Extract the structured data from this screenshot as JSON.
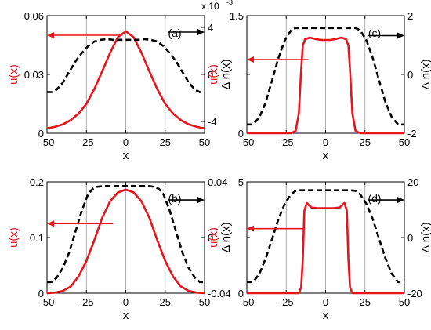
{
  "colors": {
    "u_axis": "#e8141c",
    "u_curve": "#e8141c",
    "n_curve": "#000000",
    "axis": "#000000",
    "gridline": "#9a9a9a"
  },
  "chart_data": [
    {
      "panel_label": "(a)",
      "type": "line",
      "xlabel": "x",
      "ylabel_left": "u(x)",
      "ylabel_right": "Δ n(x)",
      "right_axis_multiplier": "x 10",
      "right_axis_exponent": "-3",
      "xlim": [
        -50,
        50
      ],
      "x_ticks": [
        "-50",
        "-25",
        "0",
        "25",
        "50"
      ],
      "ylim_left": [
        0,
        0.06
      ],
      "y_ticks_left": [
        "0",
        "0.03",
        "0.06"
      ],
      "ylim_right": [
        -5,
        5
      ],
      "y_ticks_right": [
        "-4",
        "0",
        "4"
      ],
      "y_ticks_right_values": [
        -4,
        0,
        4
      ],
      "vlines": [
        -25,
        0,
        25
      ],
      "series": [
        {
          "axis": "left",
          "style": "solid",
          "x": [
            -50,
            -45,
            -40,
            -35,
            -30,
            -25,
            -20,
            -15,
            -10,
            -5,
            0,
            5,
            10,
            15,
            20,
            25,
            30,
            35,
            40,
            45,
            50
          ],
          "values": [
            0.0025,
            0.0033,
            0.0045,
            0.0067,
            0.01,
            0.015,
            0.0225,
            0.0315,
            0.041,
            0.049,
            0.052,
            0.049,
            0.041,
            0.0315,
            0.0225,
            0.015,
            0.01,
            0.0067,
            0.0045,
            0.0033,
            0.0025
          ]
        },
        {
          "axis": "right",
          "style": "dashed",
          "x": [
            -50,
            -47,
            -44,
            -40,
            -36,
            -32,
            -28,
            -24,
            -20,
            -16,
            -12,
            -8,
            -4,
            0,
            4,
            8,
            12,
            16,
            20,
            24,
            28,
            32,
            36,
            40,
            44,
            47,
            50
          ],
          "values": [
            -1.5,
            -1.5,
            -1.3,
            -0.7,
            0.2,
            1.1,
            1.8,
            2.4,
            2.8,
            2.95,
            3.0,
            2.95,
            2.95,
            2.95,
            2.95,
            2.95,
            3.0,
            2.95,
            2.8,
            2.4,
            1.8,
            1.1,
            0.2,
            -0.7,
            -1.3,
            -1.5,
            -1.5
          ]
        }
      ],
      "arrows": [
        {
          "axis": "left",
          "from_x": -2,
          "to_x": -50,
          "value": 0.05
        },
        {
          "axis": "right",
          "from_x": 27,
          "to_x": 50,
          "value": 3.6
        }
      ]
    },
    {
      "panel_label": "(c)",
      "type": "line",
      "xlabel": "x",
      "ylabel_left": "u(x)",
      "ylabel_right": "Δ n(x)",
      "xlim": [
        -50,
        50
      ],
      "x_ticks": [
        "-50",
        "-25",
        "0",
        "25",
        "50"
      ],
      "ylim_left": [
        0,
        1.5
      ],
      "y_ticks_left": [
        "0",
        "",
        "1.5"
      ],
      "y_ticks_left_values": [
        0,
        0.75,
        1.5
      ],
      "ylim_right": [
        -2,
        2
      ],
      "y_ticks_right": [
        "-2",
        "0",
        "2"
      ],
      "y_ticks_right_values": [
        -2,
        0,
        2
      ],
      "vlines": [
        -25,
        0,
        25
      ],
      "series": [
        {
          "axis": "left",
          "style": "solid",
          "x": [
            -50,
            -22,
            -19,
            -17,
            -15.5,
            -14.5,
            -13,
            -10,
            -6,
            -3,
            0,
            3,
            6,
            10,
            13,
            14.5,
            15.5,
            17,
            19,
            22,
            50
          ],
          "values": [
            0,
            0,
            0.03,
            0.25,
            0.8,
            1.12,
            1.2,
            1.22,
            1.2,
            1.19,
            1.19,
            1.19,
            1.2,
            1.22,
            1.2,
            1.12,
            0.8,
            0.25,
            0.03,
            0,
            0
          ]
        },
        {
          "axis": "right",
          "style": "dashed",
          "x": [
            -50,
            -46,
            -42,
            -38,
            -34,
            -30,
            -26,
            -22,
            -19,
            -16,
            -12,
            -6,
            0,
            6,
            12,
            16,
            19,
            22,
            26,
            30,
            34,
            38,
            42,
            46,
            50
          ],
          "values": [
            -1.7,
            -1.7,
            -1.45,
            -0.95,
            -0.2,
            0.55,
            1.15,
            1.5,
            1.58,
            1.58,
            1.58,
            1.58,
            1.58,
            1.58,
            1.58,
            1.58,
            1.58,
            1.5,
            1.15,
            0.55,
            -0.2,
            -0.95,
            -1.45,
            -1.7,
            -1.7
          ]
        }
      ],
      "arrows": [
        {
          "axis": "left",
          "from_x": -11,
          "to_x": -50,
          "value": 0.94
        },
        {
          "axis": "right",
          "from_x": 27,
          "to_x": 50,
          "value": 1.32
        }
      ]
    },
    {
      "panel_label": "(b)",
      "type": "line",
      "xlabel": "x",
      "ylabel_left": "u(x)",
      "ylabel_right": "Δ n(x)",
      "xlim": [
        -50,
        50
      ],
      "x_ticks": [
        "-50",
        "-25",
        "0",
        "25",
        "50"
      ],
      "ylim_left": [
        0,
        0.2
      ],
      "y_ticks_left": [
        "0",
        "0.1",
        "0.2"
      ],
      "ylim_right": [
        -0.04,
        0.04
      ],
      "y_ticks_right": [
        "-0.04",
        "0",
        "0.04"
      ],
      "y_ticks_right_values": [
        -0.04,
        0,
        0.04
      ],
      "vlines": [
        -25,
        0,
        25
      ],
      "series": [
        {
          "axis": "left",
          "style": "solid",
          "x": [
            -50,
            -45,
            -40,
            -35,
            -30,
            -25,
            -20,
            -15,
            -10,
            -5,
            0,
            5,
            10,
            15,
            20,
            25,
            30,
            35,
            40,
            45,
            50
          ],
          "values": [
            0,
            0.001,
            0.004,
            0.012,
            0.03,
            0.058,
            0.095,
            0.135,
            0.165,
            0.181,
            0.186,
            0.181,
            0.165,
            0.135,
            0.095,
            0.058,
            0.03,
            0.012,
            0.004,
            0.001,
            0
          ]
        },
        {
          "axis": "right",
          "style": "dashed",
          "x": [
            -50,
            -47,
            -44,
            -40,
            -36,
            -32,
            -28,
            -24,
            -21,
            -18,
            -14,
            -8,
            0,
            8,
            14,
            18,
            21,
            24,
            28,
            32,
            36,
            40,
            44,
            47,
            50
          ],
          "values": [
            -0.032,
            -0.032,
            -0.029,
            -0.022,
            -0.011,
            0.004,
            0.019,
            0.031,
            0.035,
            0.0365,
            0.037,
            0.037,
            0.037,
            0.037,
            0.037,
            0.0365,
            0.035,
            0.031,
            0.019,
            0.004,
            -0.011,
            -0.022,
            -0.029,
            -0.032,
            -0.032
          ]
        }
      ],
      "arrows": [
        {
          "axis": "left",
          "from_x": -8,
          "to_x": -50,
          "value": 0.125
        },
        {
          "axis": "right",
          "from_x": 27,
          "to_x": 50,
          "value": 0.027
        }
      ]
    },
    {
      "panel_label": "(d)",
      "type": "line",
      "xlabel": "x",
      "ylabel_left": "u(x)",
      "ylabel_right": "Δ n(x)",
      "xlim": [
        -50,
        50
      ],
      "x_ticks": [
        "-50",
        "-25",
        "0",
        "25",
        "50"
      ],
      "ylim_left": [
        0,
        5
      ],
      "y_ticks_left": [
        "0",
        "",
        "5"
      ],
      "y_ticks_left_values": [
        0,
        2.5,
        5
      ],
      "ylim_right": [
        -20,
        20
      ],
      "y_ticks_right": [
        "-20",
        "0",
        "20"
      ],
      "y_ticks_right_values": [
        -20,
        0,
        20
      ],
      "vlines": [
        -25,
        0,
        25
      ],
      "series": [
        {
          "axis": "left",
          "style": "solid",
          "x": [
            -50,
            -17,
            -15.5,
            -14.5,
            -13.5,
            -12,
            -9,
            -5,
            0,
            5,
            9,
            12,
            13.5,
            14.5,
            15.5,
            17,
            50
          ],
          "values": [
            0,
            0,
            0.25,
            1.5,
            3.7,
            4.05,
            3.85,
            3.82,
            3.82,
            3.82,
            3.85,
            4.05,
            3.7,
            1.5,
            0.25,
            0,
            0
          ]
        },
        {
          "axis": "right",
          "style": "dashed",
          "x": [
            -50,
            -46,
            -42,
            -38,
            -34,
            -30,
            -26,
            -22,
            -19,
            -16,
            -12,
            -6,
            0,
            6,
            12,
            16,
            19,
            22,
            26,
            30,
            34,
            38,
            42,
            46,
            50
          ],
          "values": [
            -16,
            -16,
            -13,
            -7.5,
            -0.5,
            6.5,
            12,
            15.5,
            16.8,
            17,
            17,
            17,
            17,
            17,
            17,
            17,
            16.8,
            15.5,
            12,
            6.5,
            -0.5,
            -7.5,
            -13,
            -16,
            -16
          ]
        }
      ],
      "arrows": [
        {
          "axis": "left",
          "from_x": -14,
          "to_x": -50,
          "value": 2.9
        },
        {
          "axis": "right",
          "from_x": 27,
          "to_x": 50,
          "value": 13.5
        }
      ]
    }
  ]
}
